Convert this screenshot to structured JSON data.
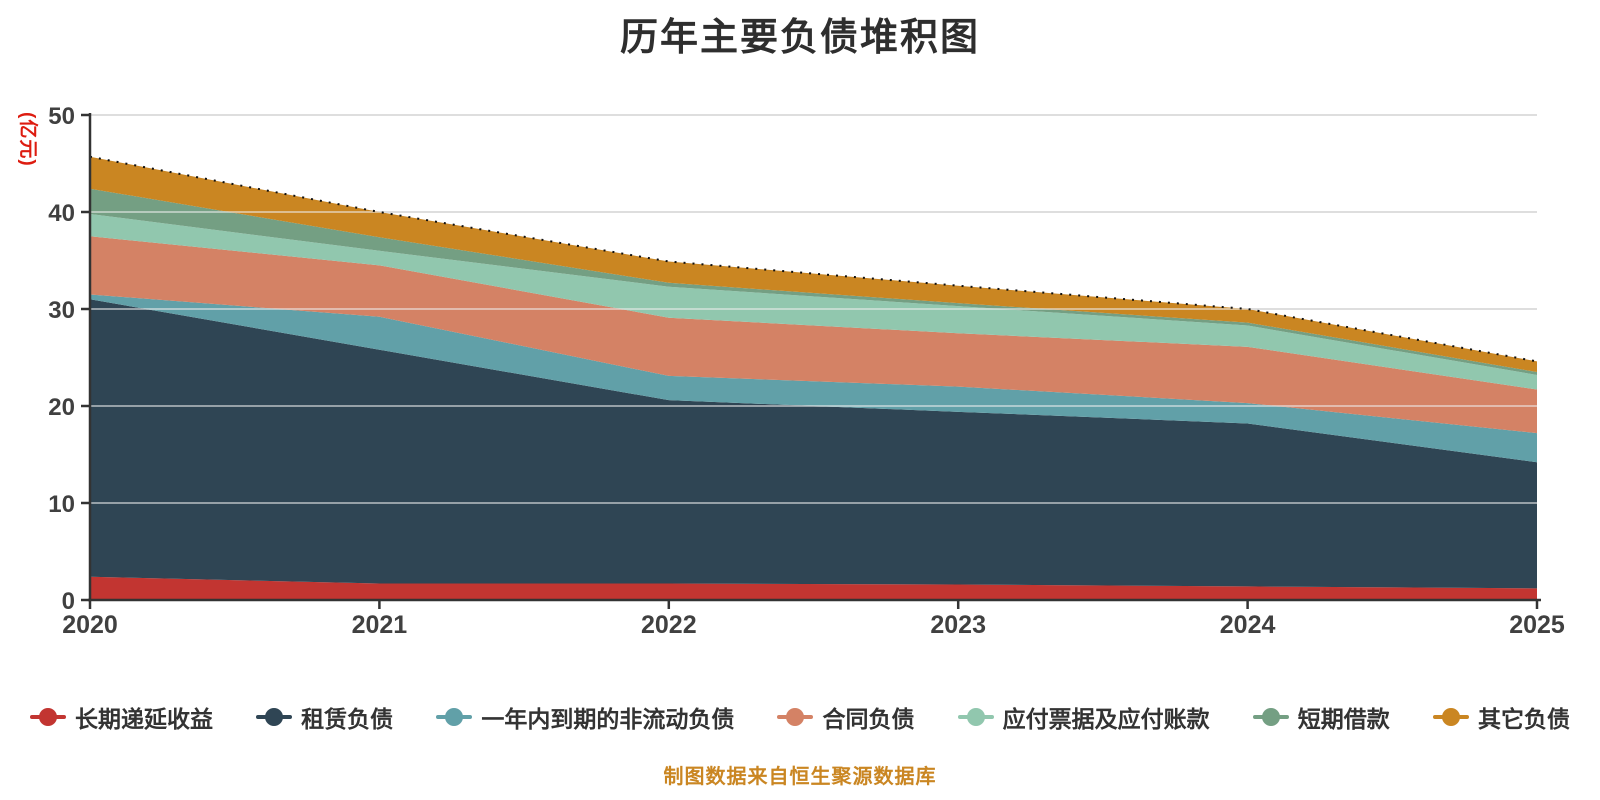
{
  "title": "历年主要负债堆积图",
  "y_axis": {
    "name": "(亿元)",
    "name_color": "#dd1c10",
    "tick_label_color": "#404040"
  },
  "x_axis": {
    "tick_label_color": "#404040"
  },
  "caption": {
    "text": "制图数据来自恒生聚源数据库",
    "color": "#ca8622"
  },
  "colors": {
    "axis_line": "#333333",
    "grid_line": "#cccccc",
    "grid_line_overlay": "rgba(236,236,236,0.55)",
    "top_edge_dots": "#111111",
    "title_text": "#2e2e2e",
    "legend_text": "#333333"
  },
  "chart_data": {
    "type": "area",
    "stacked": true,
    "title": "历年主要负债堆积图",
    "xlabel": "",
    "ylabel": "(亿元)",
    "x": [
      "2020",
      "2021",
      "2022",
      "2023",
      "2024",
      "2025"
    ],
    "ylim": [
      0,
      50
    ],
    "ytick_step": 10,
    "yticks": [
      0,
      10,
      20,
      30,
      40,
      50
    ],
    "grid": true,
    "legend_position": "bottom",
    "series": [
      {
        "name": "长期递延收益",
        "color": "#c23531",
        "values": [
          2.4,
          1.7,
          1.7,
          1.6,
          1.4,
          1.2
        ]
      },
      {
        "name": "租赁负债",
        "color": "#2f4554",
        "values": [
          28.6,
          24.1,
          18.9,
          17.8,
          16.8,
          13.0
        ]
      },
      {
        "name": "一年内到期的非流动负债",
        "color": "#61a0a8",
        "values": [
          0.5,
          3.4,
          2.5,
          2.6,
          2.1,
          3.0
        ]
      },
      {
        "name": "合同负债",
        "color": "#d48265",
        "values": [
          6.0,
          5.3,
          6.0,
          5.5,
          5.8,
          4.5
        ]
      },
      {
        "name": "应付票据及应付账款",
        "color": "#91c7ae",
        "values": [
          2.3,
          1.5,
          3.2,
          2.8,
          2.2,
          1.5
        ]
      },
      {
        "name": "短期借款",
        "color": "#749f83",
        "values": [
          2.6,
          1.4,
          0.4,
          0.3,
          0.3,
          0.3
        ]
      },
      {
        "name": "其它负债",
        "color": "#ca8622",
        "values": [
          3.3,
          2.6,
          2.2,
          1.8,
          1.4,
          1.1
        ]
      }
    ]
  }
}
